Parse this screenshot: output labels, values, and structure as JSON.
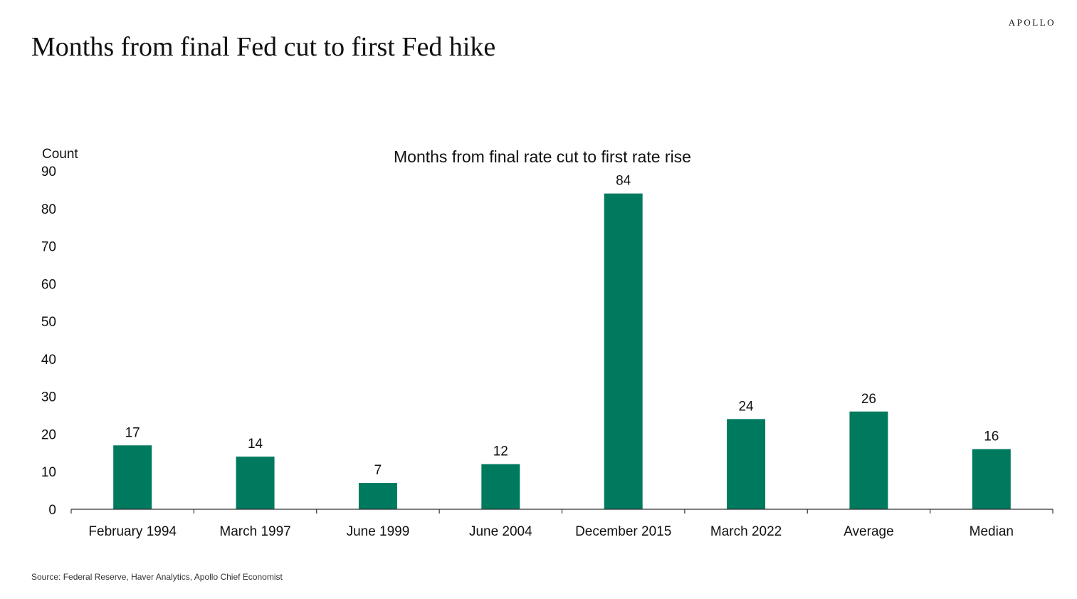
{
  "brand": "APOLLO",
  "page": {
    "title": "Months from final Fed cut to first Fed hike",
    "source": "Source: Federal Reserve, Haver Analytics, Apollo Chief Economist"
  },
  "colors": {
    "bar": "#007A5E",
    "axis": "#333333",
    "text": "#111111"
  },
  "chart_data": {
    "type": "bar",
    "title": "Months from final rate cut to first rate rise",
    "ylabel": "Count",
    "xlabel": "",
    "categories": [
      "February 1994",
      "March 1997",
      "June 1999",
      "June 2004",
      "December 2015",
      "March 2022",
      "Average",
      "Median"
    ],
    "values": [
      17,
      14,
      7,
      12,
      84,
      24,
      26,
      16
    ],
    "data_labels": [
      "17",
      "14",
      "7",
      "12",
      "84",
      "24",
      "26",
      "16"
    ],
    "ylim": [
      0,
      90
    ],
    "yticks": [
      0,
      10,
      20,
      30,
      40,
      50,
      60,
      70,
      80,
      90
    ],
    "grid": false,
    "legend": "none"
  }
}
